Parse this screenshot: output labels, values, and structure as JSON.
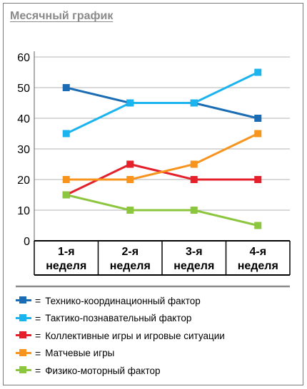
{
  "chart_data": {
    "type": "line",
    "title": "Месячный график",
    "categories": [
      [
        "1-я",
        "неделя"
      ],
      [
        "2-я",
        "неделя"
      ],
      [
        "3-я",
        "неделя"
      ],
      [
        "4-я",
        "неделя"
      ]
    ],
    "ylim": [
      0,
      60
    ],
    "yticks": [
      0,
      10,
      20,
      30,
      40,
      50,
      60
    ],
    "grid": true,
    "legend_position": "bottom",
    "series": [
      {
        "name": "Технико-координационный фактор",
        "color": "#1a6db4",
        "values": [
          50,
          45,
          45,
          40
        ]
      },
      {
        "name": "Тактико-познавательный фактор",
        "color": "#1cb4ee",
        "values": [
          35,
          45,
          45,
          55
        ]
      },
      {
        "name": "Коллективные игры и игровые ситуации",
        "color": "#e4202a",
        "values": [
          15,
          25,
          20,
          20
        ]
      },
      {
        "name": "Матчевые игры",
        "color": "#f7941e",
        "values": [
          20,
          20,
          25,
          35
        ]
      },
      {
        "name": "Физико-моторный фактор",
        "color": "#8cc63f",
        "values": [
          15,
          10,
          10,
          5
        ]
      }
    ]
  },
  "legend": {
    "equals_sign": "="
  }
}
